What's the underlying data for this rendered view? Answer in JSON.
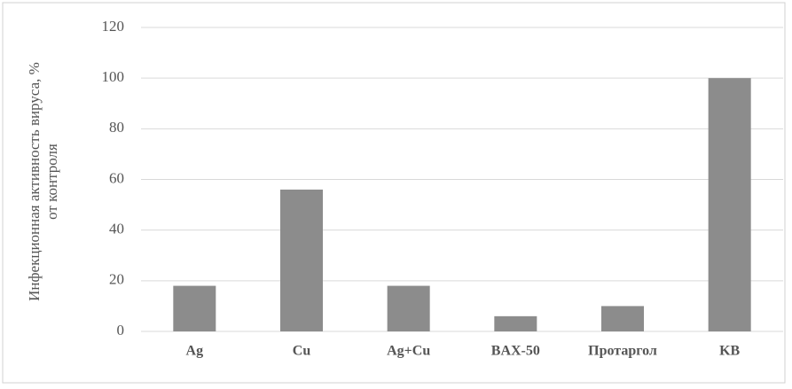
{
  "chart_data": {
    "type": "bar",
    "ylabel": [
      "Инфекционная активность вируса, %",
      "от контроля"
    ],
    "categories": [
      "Ag",
      "Cu",
      "Ag+Cu",
      "BAX-50",
      "Протаргол",
      "KB"
    ],
    "values": [
      18,
      56,
      18,
      6,
      10,
      100
    ],
    "color": "#8c8c8c",
    "ylim": [
      0,
      120
    ],
    "yticks": [
      0,
      20,
      40,
      60,
      80,
      100,
      120
    ],
    "grid": true
  }
}
